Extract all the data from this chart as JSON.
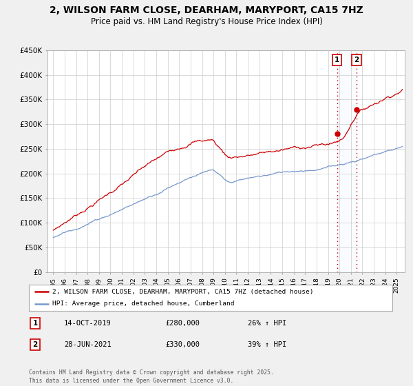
{
  "title": "2, WILSON FARM CLOSE, DEARHAM, MARYPORT, CA15 7HZ",
  "subtitle": "Price paid vs. HM Land Registry's House Price Index (HPI)",
  "title_fontsize": 10,
  "subtitle_fontsize": 8.5,
  "background_color": "#f0f0f0",
  "plot_bg_color": "#ffffff",
  "grid_color": "#cccccc",
  "ylim": [
    0,
    450000
  ],
  "yticks": [
    0,
    50000,
    100000,
    150000,
    200000,
    250000,
    300000,
    350000,
    400000,
    450000
  ],
  "ytick_labels": [
    "£0",
    "£50K",
    "£100K",
    "£150K",
    "£200K",
    "£250K",
    "£300K",
    "£350K",
    "£400K",
    "£450K"
  ],
  "xlim_start": 1994.5,
  "xlim_end": 2025.7,
  "xtick_years": [
    1995,
    1996,
    1997,
    1998,
    1999,
    2000,
    2001,
    2002,
    2003,
    2004,
    2005,
    2006,
    2007,
    2008,
    2009,
    2010,
    2011,
    2012,
    2013,
    2014,
    2015,
    2016,
    2017,
    2018,
    2019,
    2020,
    2021,
    2022,
    2023,
    2024,
    2025
  ],
  "red_line_color": "#cc0000",
  "blue_line_color": "#7799cc",
  "vline_color": "#cc0000",
  "sale1_x": 2019.79,
  "sale1_y": 280000,
  "sale2_x": 2021.49,
  "sale2_y": 330000,
  "legend_label_red": "2, WILSON FARM CLOSE, DEARHAM, MARYPORT, CA15 7HZ (detached house)",
  "legend_label_blue": "HPI: Average price, detached house, Cumberland",
  "table_entries": [
    {
      "num": "1",
      "date": "14-OCT-2019",
      "price": "£280,000",
      "hpi": "26% ↑ HPI"
    },
    {
      "num": "2",
      "date": "28-JUN-2021",
      "price": "£330,000",
      "hpi": "39% ↑ HPI"
    }
  ],
  "footer": "Contains HM Land Registry data © Crown copyright and database right 2025.\nThis data is licensed under the Open Government Licence v3.0."
}
